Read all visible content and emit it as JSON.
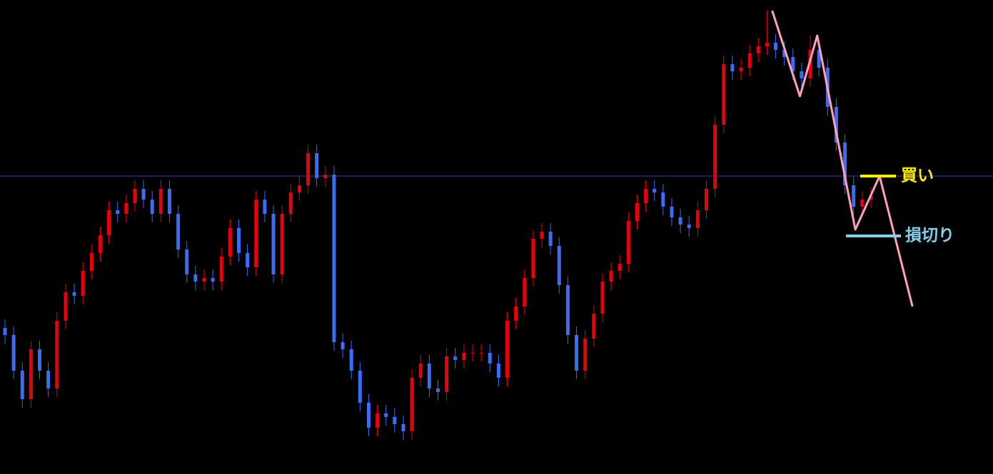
{
  "chart_data": {
    "type": "candlestick",
    "up_color": "#e8000b",
    "down_color": "#3a6cf5",
    "xlim": [
      -0.577,
      114.1
    ],
    "ylim": [
      0,
      665
    ],
    "open": [
      205,
      195,
      145,
      105,
      175,
      145,
      120,
      215,
      255,
      250,
      285,
      310,
      335,
      370,
      365,
      380,
      400,
      385,
      365,
      400,
      365,
      315,
      280,
      270,
      275,
      270,
      305,
      345,
      310,
      290,
      385,
      365,
      280,
      365,
      395,
      405,
      450,
      415,
      420,
      185,
      175,
      145,
      100,
      65,
      85,
      80,
      70,
      60,
      135,
      155,
      120,
      115,
      165,
      160,
      170,
      170,
      170,
      155,
      135,
      215,
      235,
      275,
      330,
      340,
      320,
      265,
      195,
      145,
      190,
      225,
      270,
      285,
      295,
      355,
      380,
      400,
      395,
      375,
      360,
      350,
      345,
      370,
      400,
      490,
      575,
      565,
      570,
      590,
      600,
      605,
      595,
      585,
      565,
      555,
      595,
      570,
      515,
      465,
      405,
      375,
      385
    ],
    "high": [
      217,
      207,
      157,
      187,
      187,
      157,
      227,
      267,
      267,
      297,
      322,
      347,
      382,
      382,
      392,
      412,
      412,
      397,
      412,
      412,
      377,
      327,
      292,
      287,
      287,
      317,
      357,
      357,
      322,
      397,
      397,
      377,
      377,
      407,
      417,
      462,
      462,
      432,
      432,
      197,
      187,
      157,
      112,
      97,
      97,
      92,
      82,
      147,
      167,
      167,
      132,
      177,
      177,
      182,
      182,
      182,
      182,
      167,
      227,
      247,
      287,
      342,
      352,
      352,
      332,
      277,
      207,
      202,
      237,
      282,
      297,
      307,
      367,
      392,
      412,
      412,
      407,
      387,
      372,
      362,
      382,
      412,
      502,
      587,
      587,
      582,
      602,
      612,
      650,
      617,
      607,
      597,
      577,
      615,
      607,
      582,
      527,
      477,
      417,
      397,
      402
    ],
    "low": [
      183,
      133,
      93,
      93,
      133,
      108,
      108,
      203,
      238,
      238,
      273,
      298,
      323,
      353,
      353,
      368,
      373,
      353,
      353,
      353,
      303,
      268,
      258,
      258,
      258,
      258,
      293,
      298,
      278,
      278,
      353,
      268,
      268,
      353,
      383,
      393,
      403,
      403,
      173,
      163,
      133,
      88,
      53,
      53,
      68,
      58,
      48,
      48,
      123,
      108,
      103,
      103,
      148,
      148,
      158,
      158,
      143,
      123,
      123,
      203,
      223,
      263,
      318,
      308,
      253,
      183,
      133,
      133,
      178,
      213,
      258,
      273,
      283,
      343,
      368,
      383,
      363,
      348,
      338,
      333,
      333,
      358,
      388,
      478,
      553,
      553,
      558,
      578,
      588,
      583,
      573,
      553,
      543,
      543,
      558,
      503,
      453,
      393,
      363,
      363,
      373
    ],
    "close": [
      195,
      145,
      105,
      175,
      145,
      120,
      215,
      255,
      250,
      285,
      310,
      335,
      370,
      365,
      380,
      400,
      385,
      365,
      400,
      365,
      315,
      280,
      270,
      275,
      270,
      305,
      345,
      310,
      290,
      385,
      365,
      280,
      365,
      395,
      405,
      450,
      415,
      420,
      185,
      175,
      145,
      100,
      65,
      85,
      80,
      70,
      60,
      135,
      155,
      120,
      115,
      165,
      160,
      170,
      170,
      170,
      155,
      135,
      215,
      235,
      275,
      330,
      340,
      320,
      265,
      195,
      145,
      190,
      225,
      270,
      285,
      295,
      355,
      380,
      400,
      395,
      375,
      360,
      350,
      345,
      370,
      400,
      490,
      575,
      565,
      570,
      590,
      600,
      605,
      595,
      585,
      565,
      555,
      595,
      570,
      515,
      465,
      405,
      375,
      385,
      390
    ],
    "hline": 418,
    "hline_color": "#3b3bb0",
    "zigzag": {
      "color": "#ffa0c0",
      "x": [
        88.6,
        91.8,
        93.8,
        98.2,
        101.0,
        104.8
      ],
      "y": [
        650,
        530,
        615,
        343,
        418,
        235
      ]
    },
    "annotations": [
      {
        "text": "買い",
        "value": 418,
        "color": "#ffee00"
      },
      {
        "text": "損切り",
        "value": 334,
        "color": "#87ceeb"
      }
    ]
  }
}
